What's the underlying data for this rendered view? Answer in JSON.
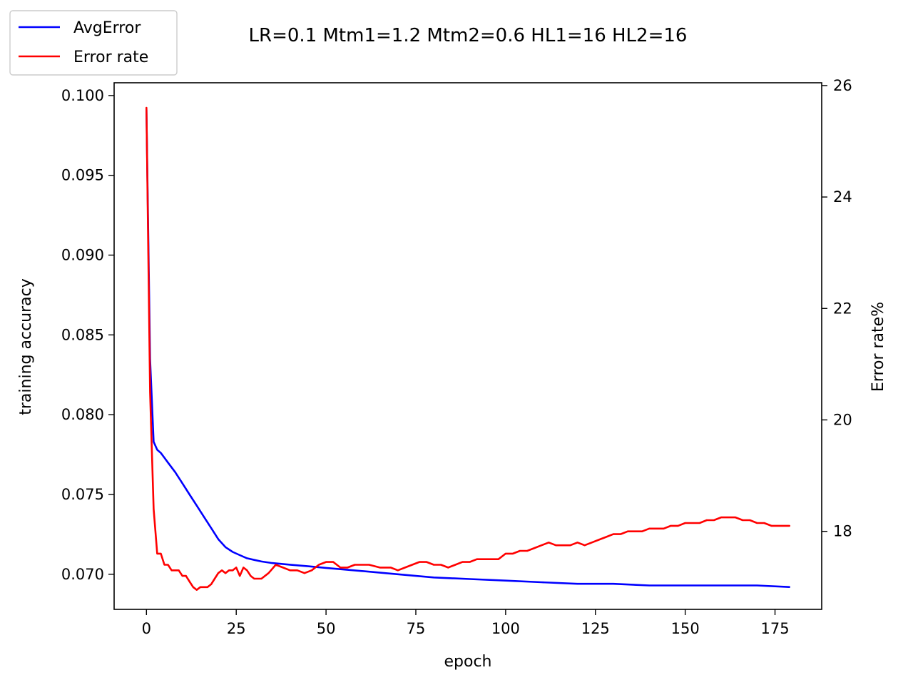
{
  "chart_data": {
    "type": "line",
    "title": "LR=0.1 Mtm1=1.2 Mtm2=0.6 HL1=16 HL2=16",
    "xlabel": "epoch",
    "ylabel_left": "training accuracy",
    "ylabel_right": "Error rate%",
    "xlim": [
      -9,
      188
    ],
    "ylim_left": [
      0.0678,
      0.1008
    ],
    "ylim_right": [
      16.6,
      26.05
    ],
    "x_ticks": [
      0,
      25,
      50,
      75,
      100,
      125,
      150,
      175
    ],
    "y_ticks_left": [
      0.07,
      0.075,
      0.08,
      0.085,
      0.09,
      0.095,
      0.1
    ],
    "y_ticks_right": [
      18,
      20,
      22,
      24,
      26
    ],
    "legend_position": "top-left (outside plot area)",
    "grid": false,
    "series": [
      {
        "name": "AvgError",
        "axis": "left",
        "color": "#0000ff",
        "x": [
          0,
          1,
          2,
          3,
          4,
          5,
          6,
          8,
          10,
          12,
          14,
          16,
          18,
          20,
          22,
          24,
          26,
          28,
          30,
          32,
          35,
          40,
          45,
          50,
          60,
          70,
          80,
          90,
          100,
          110,
          120,
          130,
          140,
          150,
          160,
          170,
          179
        ],
        "y": [
          0.0991,
          0.0835,
          0.0783,
          0.0778,
          0.0776,
          0.0773,
          0.077,
          0.0764,
          0.0757,
          0.075,
          0.0743,
          0.0736,
          0.0729,
          0.0722,
          0.0717,
          0.0714,
          0.0712,
          0.071,
          0.0709,
          0.0708,
          0.0707,
          0.0706,
          0.0705,
          0.0704,
          0.0702,
          0.07,
          0.0698,
          0.0697,
          0.0696,
          0.0695,
          0.0694,
          0.0694,
          0.0693,
          0.0693,
          0.0693,
          0.0693,
          0.0692
        ]
      },
      {
        "name": "Error rate",
        "axis": "right",
        "color": "#ff0000",
        "x": [
          0,
          1,
          2,
          3,
          4,
          5,
          6,
          7,
          8,
          9,
          10,
          11,
          12,
          13,
          14,
          15,
          16,
          17,
          18,
          19,
          20,
          21,
          22,
          23,
          24,
          25,
          26,
          27,
          28,
          29,
          30,
          32,
          34,
          36,
          38,
          40,
          42,
          44,
          46,
          48,
          50,
          52,
          54,
          56,
          58,
          60,
          62,
          65,
          68,
          70,
          72,
          74,
          76,
          78,
          80,
          82,
          84,
          86,
          88,
          90,
          92,
          94,
          96,
          98,
          100,
          102,
          104,
          106,
          108,
          110,
          112,
          114,
          116,
          118,
          120,
          122,
          124,
          126,
          128,
          130,
          132,
          134,
          136,
          138,
          140,
          142,
          144,
          146,
          148,
          150,
          152,
          154,
          156,
          158,
          160,
          162,
          164,
          166,
          168,
          170,
          172,
          174,
          176,
          178,
          179
        ],
        "y": [
          25.6,
          20.5,
          18.4,
          17.6,
          17.6,
          17.4,
          17.4,
          17.3,
          17.3,
          17.3,
          17.2,
          17.2,
          17.1,
          17.0,
          16.95,
          17.0,
          17.0,
          17.0,
          17.05,
          17.15,
          17.25,
          17.3,
          17.25,
          17.3,
          17.3,
          17.35,
          17.2,
          17.35,
          17.3,
          17.2,
          17.15,
          17.15,
          17.25,
          17.4,
          17.35,
          17.3,
          17.3,
          17.25,
          17.3,
          17.4,
          17.45,
          17.45,
          17.35,
          17.35,
          17.4,
          17.4,
          17.4,
          17.35,
          17.35,
          17.3,
          17.35,
          17.4,
          17.45,
          17.45,
          17.4,
          17.4,
          17.35,
          17.4,
          17.45,
          17.45,
          17.5,
          17.5,
          17.5,
          17.5,
          17.6,
          17.6,
          17.65,
          17.65,
          17.7,
          17.75,
          17.8,
          17.75,
          17.75,
          17.75,
          17.8,
          17.75,
          17.8,
          17.85,
          17.9,
          17.95,
          17.95,
          18.0,
          18.0,
          18.0,
          18.05,
          18.05,
          18.05,
          18.1,
          18.1,
          18.15,
          18.15,
          18.15,
          18.2,
          18.2,
          18.25,
          18.25,
          18.25,
          18.2,
          18.2,
          18.15,
          18.15,
          18.1,
          18.1,
          18.1,
          18.1
        ]
      }
    ]
  }
}
